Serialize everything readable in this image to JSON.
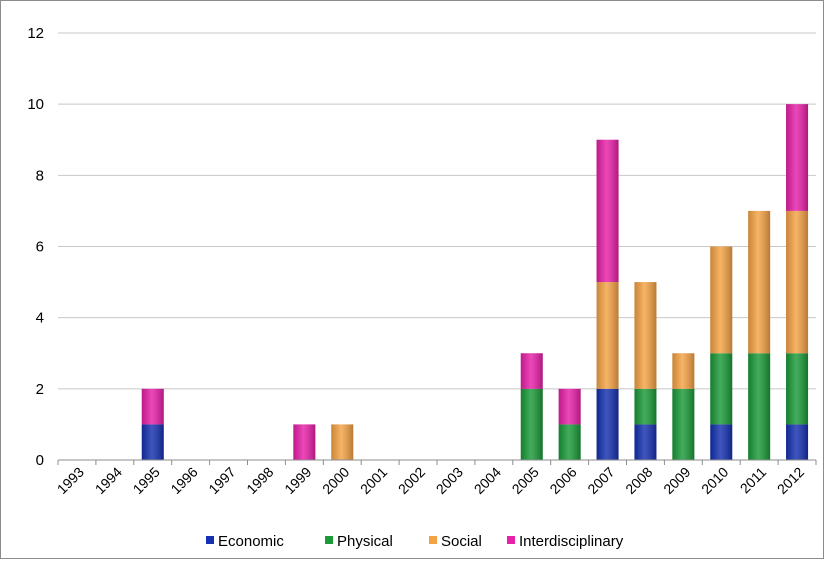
{
  "chart_data": {
    "type": "bar",
    "stacked": true,
    "title": "",
    "xlabel": "",
    "ylabel": "",
    "ylim": [
      0,
      12
    ],
    "yticks": [
      0,
      2,
      4,
      6,
      8,
      10,
      12
    ],
    "grid": true,
    "legend_position": "bottom",
    "categories": [
      "1993",
      "1994",
      "1995",
      "1996",
      "1997",
      "1998",
      "1999",
      "2000",
      "2001",
      "2002",
      "2003",
      "2004",
      "2005",
      "2006",
      "2007",
      "2008",
      "2009",
      "2010",
      "2011",
      "2012"
    ],
    "series": [
      {
        "name": "Economic",
        "color": "#1530b0",
        "values": [
          0,
          0,
          1,
          0,
          0,
          0,
          0,
          0,
          0,
          0,
          0,
          0,
          0,
          0,
          2,
          1,
          0,
          1,
          0,
          1
        ]
      },
      {
        "name": "Physical",
        "color": "#1a9a38",
        "values": [
          0,
          0,
          0,
          0,
          0,
          0,
          0,
          0,
          0,
          0,
          0,
          0,
          2,
          1,
          0,
          1,
          2,
          2,
          3,
          2
        ]
      },
      {
        "name": "Social",
        "color": "#f5a244",
        "values": [
          0,
          0,
          0,
          0,
          0,
          0,
          0,
          1,
          0,
          0,
          0,
          0,
          0,
          0,
          3,
          3,
          1,
          3,
          4,
          4
        ]
      },
      {
        "name": "Interdisciplinary",
        "color": "#e81fa8",
        "values": [
          0,
          0,
          1,
          0,
          0,
          0,
          1,
          0,
          0,
          0,
          0,
          0,
          1,
          1,
          4,
          0,
          0,
          0,
          0,
          3
        ]
      }
    ]
  }
}
